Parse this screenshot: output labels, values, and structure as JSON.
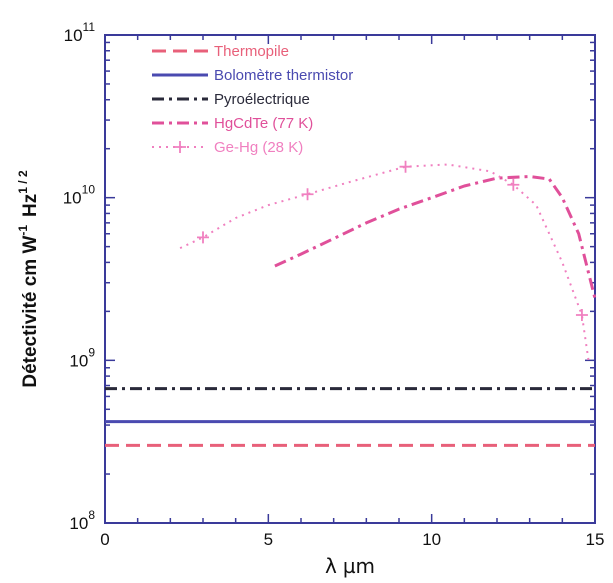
{
  "chart_data": {
    "type": "line",
    "xlabel_parts": {
      "lambda": "λ",
      "unit": "µm"
    },
    "ylabel_parts": {
      "main": "Détectivité  cm  W",
      "exp1": "-1",
      "hz": "Hz",
      "exp2": "1 / 2"
    },
    "xlim": [
      0,
      15
    ],
    "ylim": [
      100000000,
      100000000000
    ],
    "yscale": "log",
    "x_ticks": [
      {
        "value": 0,
        "label": "0"
      },
      {
        "value": 5,
        "label": "5"
      },
      {
        "value": 10,
        "label": "10"
      },
      {
        "value": 15,
        "label": "15"
      }
    ],
    "y_ticks": [
      {
        "value": 100000000,
        "base": "10",
        "exp": "8"
      },
      {
        "value": 1000000000,
        "base": "10",
        "exp": "9"
      },
      {
        "value": 10000000000,
        "base": "10",
        "exp": "10"
      },
      {
        "value": 100000000000,
        "base": "10",
        "exp": "11"
      }
    ],
    "legend_position": "top-left",
    "series": [
      {
        "name": "Thermopile",
        "color": "#e8607a",
        "style": "dashed",
        "x": [
          0,
          15
        ],
        "y": [
          300000000,
          300000000
        ]
      },
      {
        "name": "Bolomètre  thermistor",
        "color": "#4a4ab0",
        "style": "solid",
        "x": [
          0,
          15
        ],
        "y": [
          420000000,
          420000000
        ]
      },
      {
        "name": "Pyroélectrique",
        "color": "#2a2a3a",
        "style": "dashdot",
        "x": [
          0,
          15
        ],
        "y": [
          670000000,
          670000000
        ]
      },
      {
        "name": "HgCdTe (77 K)",
        "color": "#e0509a",
        "style": "dashdot",
        "x": [
          5.2,
          6,
          7,
          8,
          9,
          10,
          11,
          12,
          13,
          13.6,
          14,
          14.5,
          15
        ],
        "y": [
          3800000000,
          4500000000,
          5600000000,
          7000000000,
          8500000000,
          10000000000,
          11800000000,
          13200000000,
          13500000000,
          13000000000,
          10000000000,
          6000000000,
          2400000000
        ]
      },
      {
        "name": "Ge-Hg (28 K)",
        "color": "#f080c0",
        "style": "dotted",
        "markers": "plus",
        "x": [
          2.3,
          3,
          4,
          5,
          6.2,
          7.5,
          9.2,
          10.5,
          11.8,
          12.5,
          13.2,
          14,
          14.6,
          14.8
        ],
        "y": [
          4900000000,
          5700000000,
          7500000000,
          9000000000,
          10500000000,
          12500000000,
          15500000000,
          16000000000,
          14500000000,
          12000000000,
          9000000000,
          4000000000,
          1900000000,
          1000000000
        ],
        "marker_x": [
          3,
          6.2,
          9.2,
          12.5,
          14.6
        ],
        "marker_y": [
          5700000000,
          10500000000,
          15500000000,
          12000000000,
          1900000000
        ]
      }
    ]
  }
}
